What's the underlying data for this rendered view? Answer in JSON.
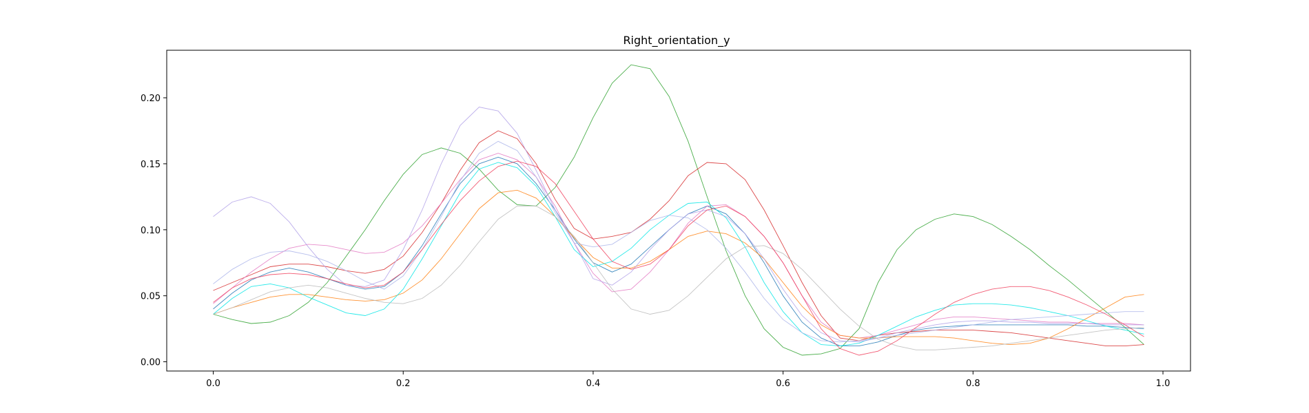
{
  "chart_data": {
    "type": "line",
    "title": "Right_orientation_y",
    "xlabel": "",
    "ylabel": "",
    "xlim": [
      -0.049,
      1.029
    ],
    "ylim": [
      -0.007,
      0.236
    ],
    "xticks": [
      0.0,
      0.2,
      0.4,
      0.6,
      0.8,
      1.0
    ],
    "xtick_labels": [
      "0.0",
      "0.2",
      "0.4",
      "0.6",
      "0.8",
      "1.0"
    ],
    "yticks": [
      0.0,
      0.05,
      0.1,
      0.15,
      0.2
    ],
    "ytick_labels": [
      "0.00",
      "0.05",
      "0.10",
      "0.15",
      "0.20"
    ],
    "grid": false,
    "x": [
      0.0,
      0.02,
      0.04,
      0.06,
      0.08,
      0.1,
      0.12,
      0.14,
      0.16,
      0.18,
      0.2,
      0.22,
      0.24,
      0.26,
      0.28,
      0.3,
      0.32,
      0.34,
      0.36,
      0.38,
      0.4,
      0.42,
      0.44,
      0.46,
      0.48,
      0.5,
      0.52,
      0.54,
      0.56,
      0.58,
      0.6,
      0.62,
      0.64,
      0.66,
      0.68,
      0.7,
      0.72,
      0.74,
      0.76,
      0.78,
      0.8,
      0.82,
      0.84,
      0.86,
      0.88,
      0.9,
      0.92,
      0.94,
      0.96,
      0.98
    ],
    "series": [
      {
        "color": "#2ca02c",
        "values": [
          0.036,
          0.032,
          0.029,
          0.03,
          0.035,
          0.045,
          0.06,
          0.08,
          0.1,
          0.122,
          0.142,
          0.157,
          0.162,
          0.158,
          0.146,
          0.13,
          0.119,
          0.118,
          0.132,
          0.155,
          0.185,
          0.211,
          0.225,
          0.222,
          0.201,
          0.167,
          0.125,
          0.084,
          0.05,
          0.025,
          0.011,
          0.005,
          0.006,
          0.01,
          0.025,
          0.06,
          0.085,
          0.1,
          0.108,
          0.112,
          0.11,
          0.104,
          0.095,
          0.085,
          0.073,
          0.062,
          0.05,
          0.038,
          0.026,
          0.013
        ]
      },
      {
        "color": "#1f77b4",
        "values": [
          0.04,
          0.052,
          0.062,
          0.068,
          0.071,
          0.068,
          0.063,
          0.058,
          0.055,
          0.057,
          0.068,
          0.088,
          0.112,
          0.135,
          0.15,
          0.155,
          0.15,
          0.135,
          0.115,
          0.093,
          0.075,
          0.068,
          0.074,
          0.087,
          0.1,
          0.112,
          0.118,
          0.112,
          0.097,
          0.075,
          0.05,
          0.03,
          0.018,
          0.012,
          0.012,
          0.015,
          0.02,
          0.024,
          0.026,
          0.027,
          0.028,
          0.028,
          0.028,
          0.028,
          0.028,
          0.028,
          0.027,
          0.027,
          0.026,
          0.025
        ]
      },
      {
        "color": "#d62728",
        "values": [
          0.054,
          0.06,
          0.066,
          0.072,
          0.074,
          0.074,
          0.072,
          0.069,
          0.067,
          0.07,
          0.08,
          0.098,
          0.12,
          0.145,
          0.166,
          0.175,
          0.169,
          0.15,
          0.123,
          0.101,
          0.093,
          0.095,
          0.098,
          0.108,
          0.122,
          0.141,
          0.151,
          0.15,
          0.138,
          0.115,
          0.088,
          0.06,
          0.035,
          0.018,
          0.016,
          0.02,
          0.022,
          0.023,
          0.024,
          0.024,
          0.024,
          0.023,
          0.022,
          0.02,
          0.018,
          0.016,
          0.014,
          0.012,
          0.012,
          0.013
        ]
      },
      {
        "color": "#e377c2",
        "values": [
          0.044,
          0.056,
          0.068,
          0.078,
          0.086,
          0.089,
          0.088,
          0.085,
          0.082,
          0.083,
          0.09,
          0.103,
          0.12,
          0.138,
          0.153,
          0.158,
          0.153,
          0.14,
          0.118,
          0.09,
          0.067,
          0.053,
          0.055,
          0.068,
          0.085,
          0.105,
          0.118,
          0.119,
          0.11,
          0.095,
          0.075,
          0.05,
          0.03,
          0.02,
          0.018,
          0.02,
          0.024,
          0.028,
          0.032,
          0.034,
          0.034,
          0.033,
          0.032,
          0.031,
          0.03,
          0.03,
          0.029,
          0.029,
          0.029,
          0.028
        ]
      },
      {
        "color": "#ff7f0e",
        "values": [
          0.036,
          0.041,
          0.045,
          0.049,
          0.051,
          0.051,
          0.049,
          0.047,
          0.046,
          0.047,
          0.052,
          0.062,
          0.078,
          0.097,
          0.116,
          0.128,
          0.13,
          0.124,
          0.11,
          0.094,
          0.079,
          0.071,
          0.071,
          0.076,
          0.085,
          0.095,
          0.099,
          0.097,
          0.09,
          0.078,
          0.06,
          0.042,
          0.028,
          0.02,
          0.018,
          0.018,
          0.019,
          0.019,
          0.019,
          0.018,
          0.016,
          0.014,
          0.013,
          0.014,
          0.018,
          0.025,
          0.033,
          0.041,
          0.049,
          0.051
        ]
      },
      {
        "color": "#00e5e5",
        "values": [
          0.036,
          0.048,
          0.057,
          0.059,
          0.056,
          0.049,
          0.043,
          0.037,
          0.035,
          0.04,
          0.055,
          0.078,
          0.103,
          0.128,
          0.146,
          0.151,
          0.147,
          0.133,
          0.11,
          0.085,
          0.072,
          0.076,
          0.086,
          0.1,
          0.111,
          0.12,
          0.121,
          0.109,
          0.087,
          0.06,
          0.038,
          0.022,
          0.013,
          0.012,
          0.014,
          0.02,
          0.027,
          0.034,
          0.039,
          0.043,
          0.044,
          0.044,
          0.043,
          0.041,
          0.038,
          0.035,
          0.031,
          0.027,
          0.024,
          0.021
        ]
      },
      {
        "color": "#b0a0e8",
        "values": [
          0.11,
          0.121,
          0.125,
          0.12,
          0.106,
          0.087,
          0.07,
          0.058,
          0.057,
          0.062,
          0.085,
          0.115,
          0.15,
          0.179,
          0.193,
          0.19,
          0.173,
          0.145,
          0.115,
          0.09,
          0.063,
          0.058,
          0.068,
          0.085,
          0.1,
          0.112,
          0.115,
          0.11,
          0.097,
          0.078,
          0.055,
          0.035,
          0.022,
          0.016,
          0.015,
          0.018,
          0.022,
          0.025,
          0.028,
          0.03,
          0.031,
          0.031,
          0.03,
          0.03,
          0.029,
          0.029,
          0.029,
          0.028,
          0.028,
          0.028
        ]
      },
      {
        "color": "#aab4ea",
        "values": [
          0.059,
          0.07,
          0.078,
          0.083,
          0.084,
          0.081,
          0.076,
          0.069,
          0.061,
          0.055,
          0.065,
          0.085,
          0.11,
          0.137,
          0.158,
          0.167,
          0.16,
          0.14,
          0.113,
          0.09,
          0.087,
          0.089,
          0.098,
          0.107,
          0.111,
          0.109,
          0.1,
          0.086,
          0.068,
          0.048,
          0.032,
          0.022,
          0.016,
          0.015,
          0.016,
          0.018,
          0.02,
          0.022,
          0.024,
          0.026,
          0.028,
          0.03,
          0.032,
          0.033,
          0.034,
          0.035,
          0.036,
          0.037,
          0.038,
          0.038
        ]
      },
      {
        "color": "#b8b8b8",
        "values": [
          0.036,
          0.041,
          0.047,
          0.053,
          0.056,
          0.058,
          0.056,
          0.052,
          0.048,
          0.045,
          0.044,
          0.048,
          0.058,
          0.073,
          0.091,
          0.108,
          0.118,
          0.118,
          0.11,
          0.095,
          0.075,
          0.055,
          0.04,
          0.036,
          0.039,
          0.05,
          0.064,
          0.078,
          0.087,
          0.088,
          0.082,
          0.07,
          0.055,
          0.04,
          0.027,
          0.017,
          0.012,
          0.009,
          0.009,
          0.01,
          0.011,
          0.012,
          0.014,
          0.016,
          0.018,
          0.02,
          0.022,
          0.024,
          0.025,
          0.026
        ]
      },
      {
        "color": "#f03d5a",
        "values": [
          0.045,
          0.056,
          0.063,
          0.066,
          0.067,
          0.066,
          0.063,
          0.059,
          0.056,
          0.058,
          0.068,
          0.085,
          0.104,
          0.122,
          0.137,
          0.148,
          0.152,
          0.148,
          0.135,
          0.114,
          0.093,
          0.076,
          0.07,
          0.074,
          0.085,
          0.103,
          0.115,
          0.118,
          0.11,
          0.095,
          0.075,
          0.05,
          0.025,
          0.01,
          0.005,
          0.008,
          0.016,
          0.026,
          0.036,
          0.045,
          0.051,
          0.055,
          0.057,
          0.057,
          0.054,
          0.049,
          0.043,
          0.036,
          0.028,
          0.019
        ]
      }
    ]
  }
}
